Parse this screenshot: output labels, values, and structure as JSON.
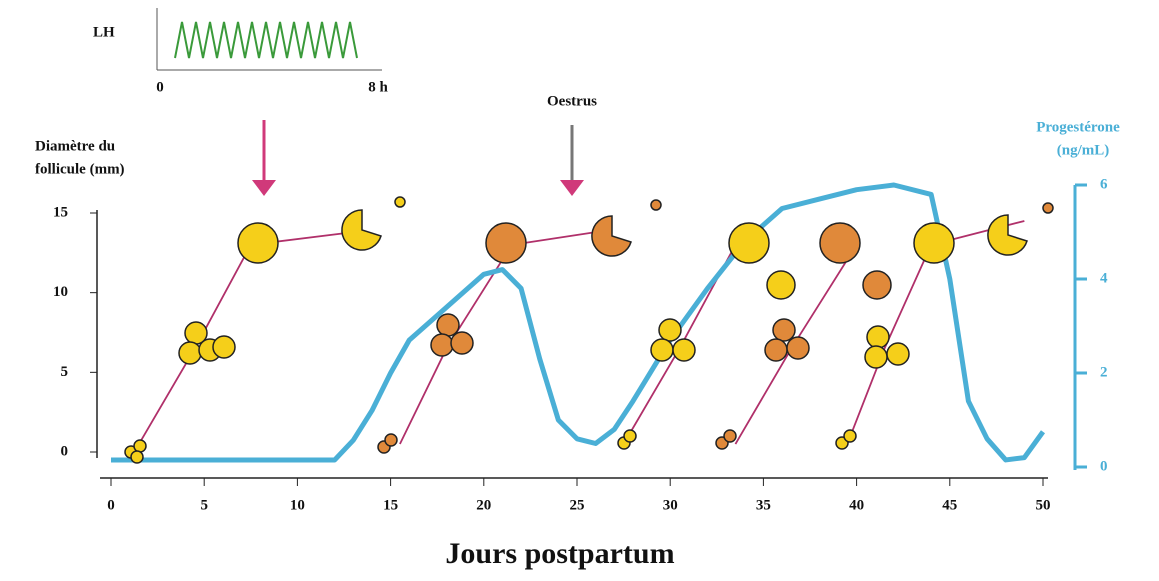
{
  "chart_data": {
    "type": "line",
    "xlabel": "Jours postpartum",
    "ylabel": [
      "Diamètre du",
      "follicule (mm)"
    ],
    "y2label": [
      "Progestérone",
      "(ng/mL)"
    ],
    "annotations": [
      "Oestrus"
    ],
    "inset": {
      "label": "LH",
      "xticks": [
        "0",
        "8 h"
      ]
    },
    "xlim": [
      0,
      50
    ],
    "xticks": [
      0,
      5,
      10,
      15,
      20,
      25,
      30,
      35,
      40,
      45,
      50
    ],
    "ylim": [
      0,
      15
    ],
    "yticks": [
      0,
      5,
      10,
      15
    ],
    "y2lim": [
      0,
      6
    ],
    "y2ticks": [
      0,
      2,
      4,
      6
    ],
    "series": [
      {
        "color": "#b0306a",
        "x": [
          1.5,
          4.5,
          7.5,
          13
        ],
        "values": [
          0.5,
          6.5,
          13,
          13.8
        ]
      },
      {
        "color": "#b0306a",
        "x": [
          15.5,
          18,
          21.5,
          26
        ],
        "values": [
          0.5,
          6.5,
          13,
          13.8
        ]
      },
      {
        "color": "#b0306a",
        "x": [
          27.5,
          30.5,
          33.5
        ],
        "values": [
          0.5,
          6.5,
          13
        ]
      },
      {
        "color": "#b0306a",
        "x": [
          33.5,
          36.5,
          40
        ],
        "values": [
          0.5,
          6.5,
          13
        ]
      },
      {
        "color": "#b0306a",
        "x": [
          39.5,
          41.5,
          44,
          49
        ],
        "values": [
          0.5,
          6.5,
          13,
          14.5
        ]
      },
      {
        "color": "#4aafd6",
        "axis": "y2",
        "x": [
          0,
          12,
          13,
          14,
          15,
          16,
          18,
          20,
          21,
          22,
          23,
          24,
          25,
          26,
          27,
          28,
          30,
          32,
          34,
          36,
          38,
          40,
          42,
          44,
          45,
          46,
          47,
          48,
          49,
          50
        ],
        "values": [
          0.15,
          0.15,
          0.57,
          1.2,
          2.0,
          2.7,
          3.4,
          4.1,
          4.2,
          3.8,
          2.3,
          1.0,
          0.6,
          0.5,
          0.8,
          1.4,
          2.7,
          3.8,
          4.8,
          5.5,
          5.7,
          5.9,
          6.0,
          5.8,
          4.0,
          1.4,
          0.6,
          0.15,
          0.2,
          0.75
        ]
      }
    ]
  }
}
